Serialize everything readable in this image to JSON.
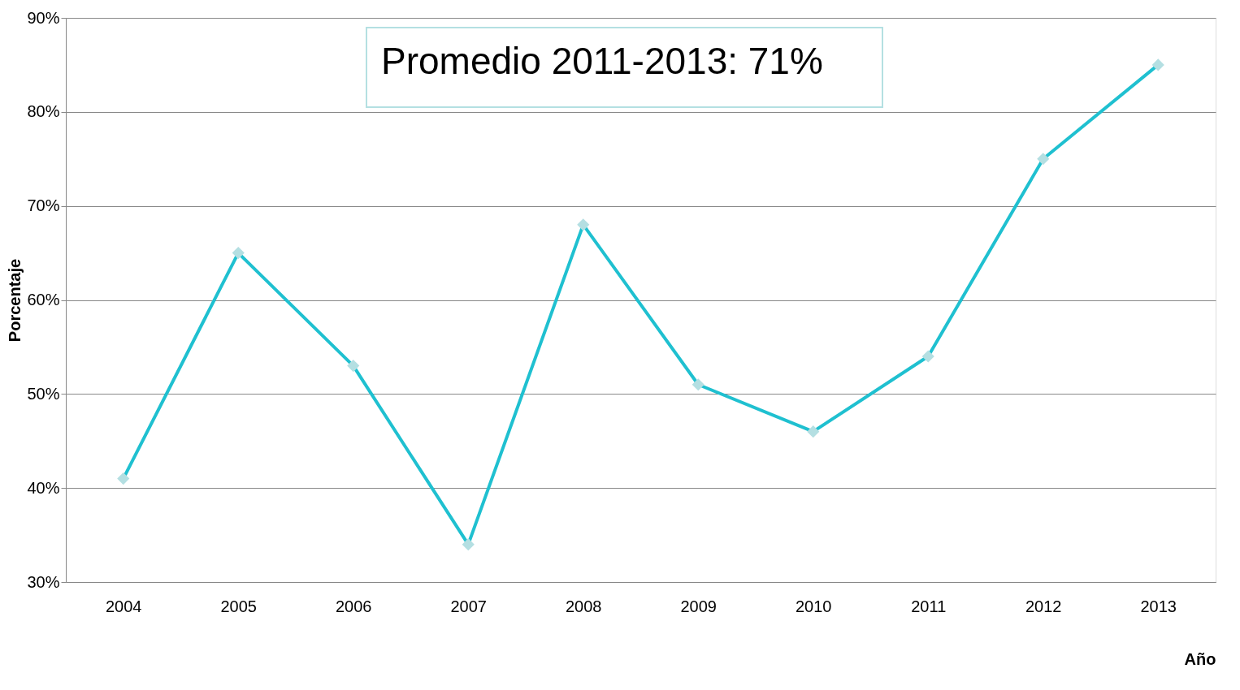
{
  "chart_data": {
    "type": "line",
    "xlabel": "Año",
    "ylabel": "Porcentaje",
    "categories": [
      "2004",
      "2005",
      "2006",
      "2007",
      "2008",
      "2009",
      "2010",
      "2011",
      "2012",
      "2013"
    ],
    "series": [
      {
        "color": "#1fc0d0",
        "values": [
          41,
          65,
          53,
          34,
          68,
          51,
          46,
          54,
          75,
          85
        ]
      }
    ],
    "ylim": [
      30,
      90
    ],
    "yticks": [
      {
        "value": 30,
        "label": "30%"
      },
      {
        "value": 40,
        "label": "40%"
      },
      {
        "value": 50,
        "label": "50%"
      },
      {
        "value": 60,
        "label": "60%"
      },
      {
        "value": 70,
        "label": "70%"
      },
      {
        "value": 80,
        "label": "80%"
      },
      {
        "value": 90,
        "label": "90%"
      }
    ],
    "grid": "y",
    "marker": "diamond",
    "line_style": "solid",
    "annotations": [
      "Promedio 2011-2013: 71%"
    ]
  }
}
